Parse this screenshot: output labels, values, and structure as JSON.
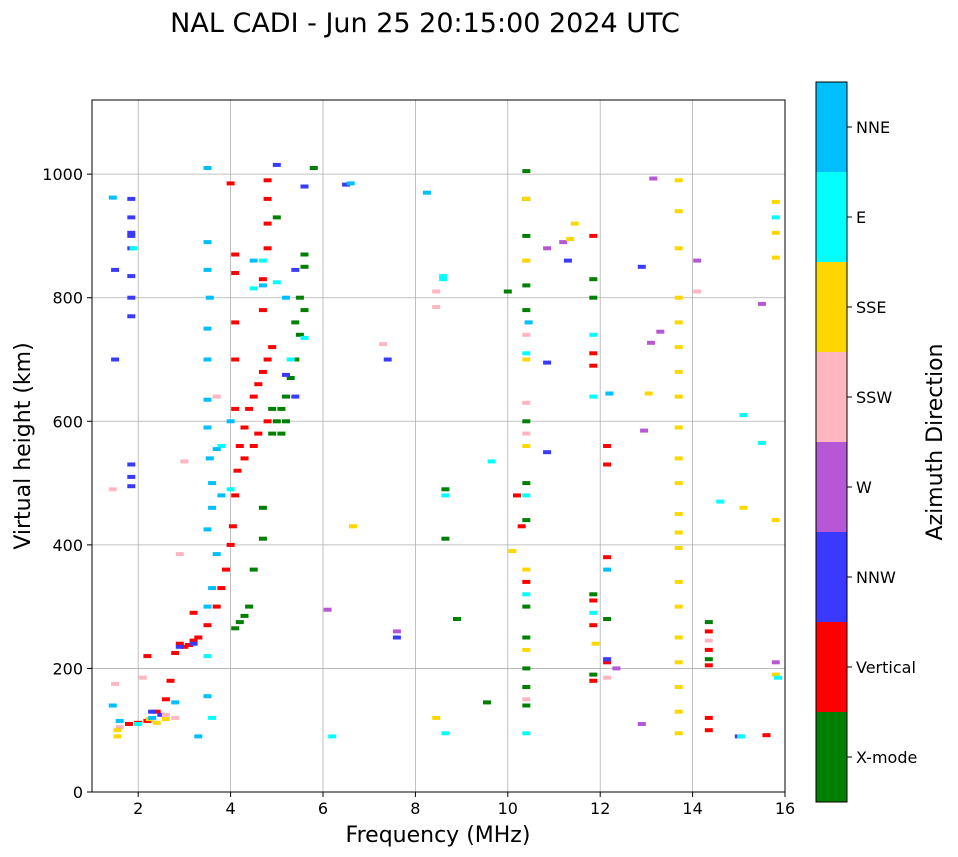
{
  "chart_data": {
    "type": "scatter",
    "title": "NAL CADI - Jun 25 20:15:00 2024 UTC",
    "xlabel": "Frequency (MHz)",
    "ylabel": "Virtual height (km)",
    "xlim": [
      1,
      16
    ],
    "ylim": [
      0,
      1120
    ],
    "xticks": [
      2,
      4,
      6,
      8,
      10,
      12,
      14,
      16
    ],
    "yticks": [
      0,
      200,
      400,
      600,
      800,
      1000
    ],
    "grid": true,
    "colorbar": {
      "title": "Azimuth Direction",
      "categories": [
        {
          "name": "X-mode",
          "color": "#008000"
        },
        {
          "name": "Vertical",
          "color": "#ff0000"
        },
        {
          "name": "NNW",
          "color": "#3a3aff"
        },
        {
          "name": "W",
          "color": "#b657d6"
        },
        {
          "name": "SSW",
          "color": "#ffb6c1"
        },
        {
          "name": "SSE",
          "color": "#ffd700"
        },
        {
          "name": "E",
          "color": "#00ffff"
        },
        {
          "name": "NNE",
          "color": "#00bfff"
        }
      ]
    },
    "series": [
      {
        "name": "Vertical",
        "points": [
          [
            1.8,
            110
          ],
          [
            2.0,
            112
          ],
          [
            2.2,
            115
          ],
          [
            2.4,
            130
          ],
          [
            2.6,
            150
          ],
          [
            2.7,
            180
          ],
          [
            2.8,
            225
          ],
          [
            2.9,
            240
          ],
          [
            3.0,
            235
          ],
          [
            3.1,
            238
          ],
          [
            3.2,
            245
          ],
          [
            3.3,
            250
          ],
          [
            3.5,
            270
          ],
          [
            3.7,
            300
          ],
          [
            3.8,
            330
          ],
          [
            3.9,
            360
          ],
          [
            4.0,
            400
          ],
          [
            4.05,
            430
          ],
          [
            4.1,
            480
          ],
          [
            4.15,
            520
          ],
          [
            4.2,
            560
          ],
          [
            4.3,
            590
          ],
          [
            4.4,
            620
          ],
          [
            4.5,
            640
          ],
          [
            4.6,
            660
          ],
          [
            4.7,
            680
          ],
          [
            4.8,
            700
          ],
          [
            4.9,
            720
          ],
          [
            4.6,
            580
          ],
          [
            4.8,
            600
          ],
          [
            4.5,
            560
          ],
          [
            4.3,
            540
          ],
          [
            4.1,
            620
          ],
          [
            4.1,
            700
          ],
          [
            4.1,
            760
          ],
          [
            4.1,
            840
          ],
          [
            4.1,
            870
          ],
          [
            4.7,
            780
          ],
          [
            4.7,
            830
          ],
          [
            4.8,
            880
          ],
          [
            4.8,
            920
          ],
          [
            4.8,
            960
          ],
          [
            4.8,
            990
          ],
          [
            4.0,
            985
          ],
          [
            10.2,
            480
          ],
          [
            10.3,
            430
          ],
          [
            10.4,
            340
          ],
          [
            12.15,
            560
          ],
          [
            12.15,
            530
          ],
          [
            12.15,
            380
          ],
          [
            12.15,
            210
          ],
          [
            11.85,
            310
          ],
          [
            11.85,
            270
          ],
          [
            11.85,
            180
          ],
          [
            11.85,
            690
          ],
          [
            11.85,
            710
          ],
          [
            11.85,
            900
          ],
          [
            14.35,
            260
          ],
          [
            14.35,
            230
          ],
          [
            14.35,
            205
          ],
          [
            14.35,
            120
          ],
          [
            14.35,
            100
          ],
          [
            15.6,
            92
          ],
          [
            2.2,
            220
          ],
          [
            3.2,
            290
          ]
        ]
      },
      {
        "name": "X-mode",
        "points": [
          [
            4.1,
            265
          ],
          [
            4.2,
            275
          ],
          [
            4.3,
            285
          ],
          [
            4.4,
            300
          ],
          [
            4.5,
            360
          ],
          [
            4.7,
            410
          ],
          [
            4.7,
            460
          ],
          [
            4.9,
            580
          ],
          [
            5.0,
            600
          ],
          [
            5.1,
            620
          ],
          [
            5.2,
            640
          ],
          [
            5.3,
            670
          ],
          [
            5.4,
            700
          ],
          [
            5.5,
            740
          ],
          [
            5.6,
            780
          ],
          [
            5.4,
            760
          ],
          [
            5.5,
            800
          ],
          [
            5.6,
            850
          ],
          [
            5.6,
            870
          ],
          [
            4.9,
            620
          ],
          [
            5.1,
            580
          ],
          [
            5.2,
            600
          ],
          [
            8.65,
            490
          ],
          [
            8.65,
            410
          ],
          [
            8.9,
            280
          ],
          [
            9.55,
            145
          ],
          [
            10.0,
            810
          ],
          [
            10.4,
            1005
          ],
          [
            10.4,
            960
          ],
          [
            10.4,
            900
          ],
          [
            10.4,
            820
          ],
          [
            10.4,
            780
          ],
          [
            10.4,
            600
          ],
          [
            10.4,
            500
          ],
          [
            10.4,
            440
          ],
          [
            10.4,
            300
          ],
          [
            10.4,
            250
          ],
          [
            10.4,
            200
          ],
          [
            10.4,
            170
          ],
          [
            10.4,
            140
          ],
          [
            11.85,
            800
          ],
          [
            11.85,
            830
          ],
          [
            11.85,
            320
          ],
          [
            11.85,
            190
          ],
          [
            14.35,
            215
          ],
          [
            14.35,
            275
          ],
          [
            12.15,
            280
          ],
          [
            5.8,
            1010
          ],
          [
            5.0,
            930
          ]
        ]
      },
      {
        "name": "NNW",
        "points": [
          [
            1.85,
            960
          ],
          [
            1.85,
            930
          ],
          [
            1.85,
            900
          ],
          [
            1.85,
            880
          ],
          [
            1.85,
            835
          ],
          [
            1.85,
            800
          ],
          [
            1.85,
            770
          ],
          [
            1.5,
            700
          ],
          [
            1.5,
            845
          ],
          [
            1.85,
            530
          ],
          [
            1.85,
            510
          ],
          [
            1.85,
            495
          ],
          [
            2.3,
            130
          ],
          [
            2.5,
            125
          ],
          [
            2.9,
            235
          ],
          [
            3.2,
            240
          ],
          [
            5.0,
            1015
          ],
          [
            5.6,
            980
          ],
          [
            6.5,
            983
          ],
          [
            5.4,
            845
          ],
          [
            5.2,
            675
          ],
          [
            5.4,
            640
          ],
          [
            7.4,
            700
          ],
          [
            7.6,
            250
          ],
          [
            10.85,
            695
          ],
          [
            10.85,
            550
          ],
          [
            11.3,
            860
          ],
          [
            12.9,
            850
          ],
          [
            15.0,
            90
          ],
          [
            12.15,
            215
          ],
          [
            1.85,
            905
          ]
        ]
      },
      {
        "name": "W",
        "points": [
          [
            6.1,
            295
          ],
          [
            7.6,
            260
          ],
          [
            10.85,
            880
          ],
          [
            11.2,
            890
          ],
          [
            12.35,
            200
          ],
          [
            12.9,
            110
          ],
          [
            12.95,
            585
          ],
          [
            13.1,
            727
          ],
          [
            13.3,
            745
          ],
          [
            13.15,
            993
          ],
          [
            14.1,
            860
          ],
          [
            15.5,
            790
          ],
          [
            15.8,
            210
          ]
        ]
      },
      {
        "name": "SSW",
        "points": [
          [
            1.5,
            175
          ],
          [
            1.6,
            105
          ],
          [
            2.1,
            185
          ],
          [
            2.6,
            125
          ],
          [
            2.8,
            120
          ],
          [
            2.9,
            385
          ],
          [
            3.0,
            535
          ],
          [
            3.7,
            640
          ],
          [
            8.45,
            810
          ],
          [
            8.45,
            785
          ],
          [
            7.3,
            725
          ],
          [
            10.4,
            630
          ],
          [
            10.4,
            740
          ],
          [
            10.4,
            860
          ],
          [
            10.4,
            580
          ],
          [
            10.4,
            150
          ],
          [
            12.15,
            185
          ],
          [
            14.1,
            810
          ],
          [
            14.35,
            245
          ],
          [
            1.45,
            490
          ]
        ]
      },
      {
        "name": "SSE",
        "points": [
          [
            1.55,
            100
          ],
          [
            1.55,
            90
          ],
          [
            2.25,
            118
          ],
          [
            2.4,
            112
          ],
          [
            2.6,
            118
          ],
          [
            6.65,
            430
          ],
          [
            8.45,
            120
          ],
          [
            10.1,
            390
          ],
          [
            10.4,
            960
          ],
          [
            10.4,
            860
          ],
          [
            10.4,
            700
          ],
          [
            10.4,
            560
          ],
          [
            10.4,
            360
          ],
          [
            10.4,
            230
          ],
          [
            11.9,
            240
          ],
          [
            11.35,
            895
          ],
          [
            11.45,
            920
          ],
          [
            13.05,
            645
          ],
          [
            13.7,
            990
          ],
          [
            13.7,
            940
          ],
          [
            13.7,
            880
          ],
          [
            13.7,
            800
          ],
          [
            13.7,
            760
          ],
          [
            13.7,
            720
          ],
          [
            13.7,
            680
          ],
          [
            13.7,
            640
          ],
          [
            13.7,
            590
          ],
          [
            13.7,
            540
          ],
          [
            13.7,
            500
          ],
          [
            13.7,
            450
          ],
          [
            13.7,
            420
          ],
          [
            13.7,
            395
          ],
          [
            13.7,
            340
          ],
          [
            13.7,
            300
          ],
          [
            13.7,
            250
          ],
          [
            13.7,
            210
          ],
          [
            13.7,
            170
          ],
          [
            13.7,
            130
          ],
          [
            13.7,
            95
          ],
          [
            15.1,
            460
          ],
          [
            15.8,
            440
          ],
          [
            15.8,
            905
          ],
          [
            15.8,
            955
          ],
          [
            15.8,
            865
          ],
          [
            15.8,
            190
          ]
        ]
      },
      {
        "name": "E",
        "points": [
          [
            1.9,
            880
          ],
          [
            2.0,
            110
          ],
          [
            3.5,
            220
          ],
          [
            3.6,
            120
          ],
          [
            3.8,
            560
          ],
          [
            4.0,
            490
          ],
          [
            4.5,
            815
          ],
          [
            4.7,
            860
          ],
          [
            5.0,
            825
          ],
          [
            5.3,
            700
          ],
          [
            5.6,
            735
          ],
          [
            6.2,
            90
          ],
          [
            8.6,
            835
          ],
          [
            8.6,
            830
          ],
          [
            8.65,
            480
          ],
          [
            8.65,
            95
          ],
          [
            9.65,
            535
          ],
          [
            10.4,
            710
          ],
          [
            10.4,
            480
          ],
          [
            10.4,
            320
          ],
          [
            10.4,
            95
          ],
          [
            11.85,
            740
          ],
          [
            11.85,
            290
          ],
          [
            14.6,
            470
          ],
          [
            15.1,
            610
          ],
          [
            15.5,
            565
          ],
          [
            15.05,
            90
          ],
          [
            15.8,
            930
          ],
          [
            15.85,
            185
          ],
          [
            11.85,
            640
          ]
        ]
      },
      {
        "name": "NNE",
        "points": [
          [
            1.45,
            962
          ],
          [
            1.45,
            140
          ],
          [
            1.6,
            115
          ],
          [
            2.3,
            120
          ],
          [
            2.8,
            145
          ],
          [
            3.3,
            90
          ],
          [
            3.5,
            1010
          ],
          [
            3.5,
            890
          ],
          [
            3.5,
            845
          ],
          [
            3.55,
            800
          ],
          [
            3.5,
            750
          ],
          [
            3.5,
            700
          ],
          [
            3.5,
            635
          ],
          [
            3.5,
            590
          ],
          [
            3.55,
            540
          ],
          [
            3.6,
            500
          ],
          [
            3.6,
            460
          ],
          [
            3.5,
            425
          ],
          [
            3.7,
            385
          ],
          [
            3.6,
            330
          ],
          [
            3.5,
            300
          ],
          [
            3.5,
            155
          ],
          [
            3.7,
            555
          ],
          [
            3.8,
            480
          ],
          [
            4.0,
            600
          ],
          [
            4.5,
            860
          ],
          [
            4.7,
            820
          ],
          [
            5.2,
            800
          ],
          [
            6.6,
            985
          ],
          [
            8.25,
            970
          ],
          [
            10.45,
            760
          ],
          [
            12.2,
            645
          ],
          [
            12.15,
            360
          ]
        ]
      }
    ]
  }
}
